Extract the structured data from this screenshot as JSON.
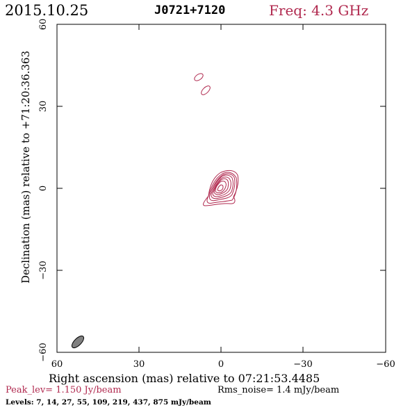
{
  "header": {
    "date": "2015.10.25",
    "source": "J0721+7120",
    "freq": "Freq: 4.3 GHz"
  },
  "axes": {
    "xlabel": "Right ascension (mas) relative to 07:21:53.4485",
    "ylabel": "Declination (mas) relative to +71:20:36.363",
    "xticks": [
      "60",
      "30",
      "0",
      "−30",
      "−60"
    ],
    "yticks": [
      "60",
      "30",
      "0",
      "−30",
      "−60"
    ]
  },
  "footer": {
    "peak": "Peak_lev=  1.150 Jy/beam",
    "rms": "Rms_noise=  1.4 mJy/beam",
    "levels": "Levels:   7,  14,  27,  55, 109, 219, 437, 875 mJy/beam"
  },
  "colors": {
    "contour": "#b0284e",
    "beam": "#808080"
  }
}
